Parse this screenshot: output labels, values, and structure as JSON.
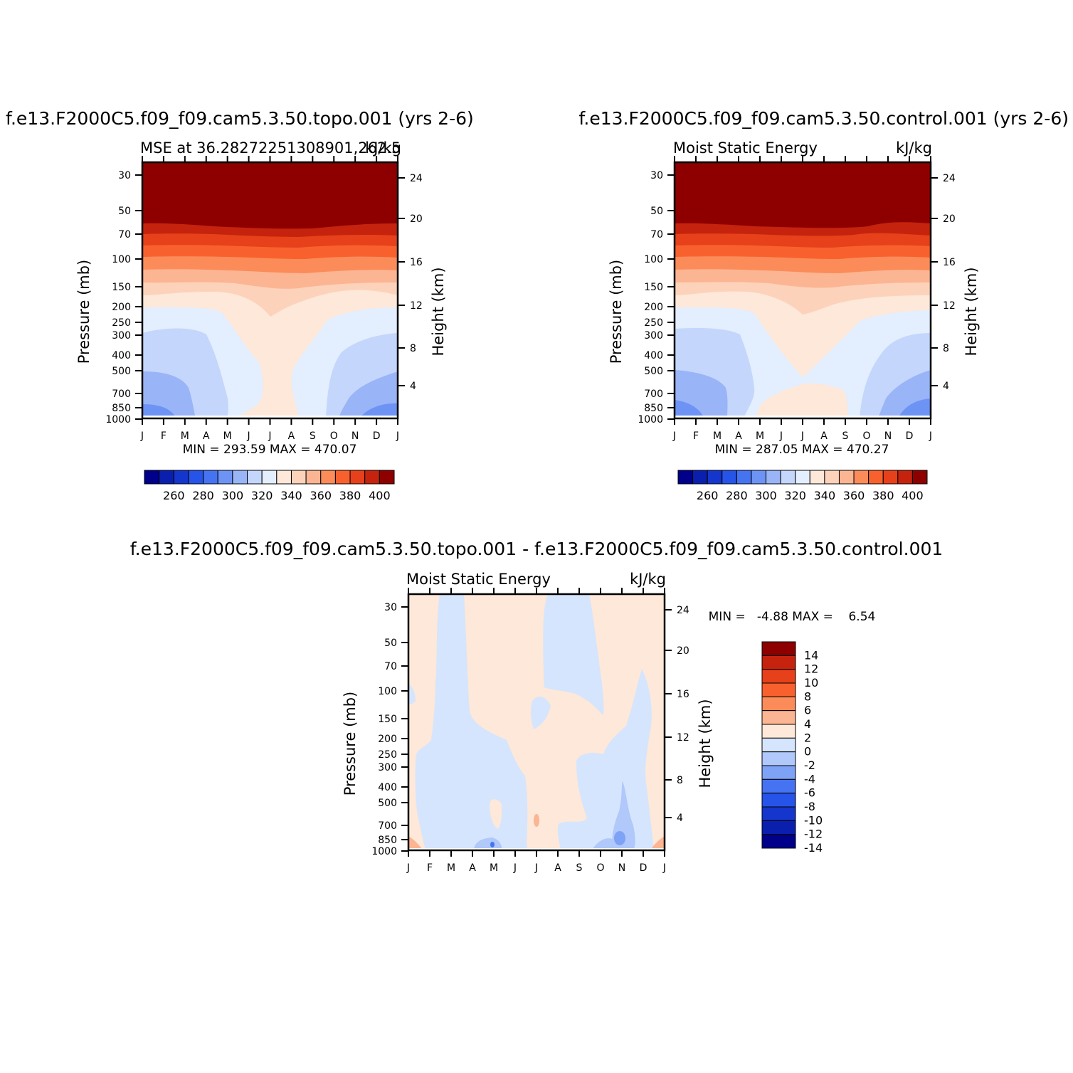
{
  "colors": {
    "abs_scale": [
      "#00008b",
      "#0b1fae",
      "#1536cc",
      "#2653e8",
      "#4573f2",
      "#6d93f5",
      "#99b4f7",
      "#c4d6fb",
      "#e3eefe",
      "#fde8d9",
      "#fdd2bb",
      "#fcb592",
      "#fb8c5a",
      "#f8612d",
      "#e6411a",
      "#c5230d",
      "#8e0000"
    ],
    "diff_scale": [
      "#00008b",
      "#0b1fae",
      "#1536cc",
      "#2653e8",
      "#4573f2",
      "#7ea2f6",
      "#b0c8fa",
      "#d5e5fd",
      "#fde8d9",
      "#fcb592",
      "#fb8c5a",
      "#f8612d",
      "#e6411a",
      "#c5230d",
      "#8e0000"
    ]
  },
  "panels": {
    "topo": {
      "header": "f.e13.F2000C5.f09_f09.cam5.3.50.topo.001  (yrs 2-6)",
      "left_title": "MSE at 36.28272251308901,262.5",
      "units": "kJ/kg",
      "minmax": "MIN = 293.59  MAX = 470.07",
      "colorbar_labels": [
        "260",
        "280",
        "300",
        "320",
        "340",
        "360",
        "380",
        "400"
      ]
    },
    "control": {
      "header": "f.e13.F2000C5.f09_f09.cam5.3.50.control.001  (yrs 2-6)",
      "left_title": "Moist Static Energy",
      "units": "kJ/kg",
      "minmax": "MIN = 287.05  MAX = 470.27",
      "colorbar_labels": [
        "260",
        "280",
        "300",
        "320",
        "340",
        "360",
        "380",
        "400"
      ]
    },
    "diff": {
      "header": "f.e13.F2000C5.f09_f09.cam5.3.50.topo.001 - f.e13.F2000C5.f09_f09.cam5.3.50.control.001",
      "left_title": "Moist Static Energy",
      "units": "kJ/kg",
      "minmax": "MIN =   -4.88 MAX =    6.54",
      "colorbar_labels": [
        "14",
        "12",
        "10",
        "8",
        "6",
        "4",
        "2",
        "0",
        "-2",
        "-4",
        "-6",
        "-8",
        "-10",
        "-12",
        "-14"
      ]
    }
  },
  "chart_data": [
    {
      "type": "heatmap",
      "title": "MSE at 36.28272251308901,262.5",
      "units": "kJ/kg",
      "x_ticks": [
        "J",
        "F",
        "M",
        "A",
        "M",
        "J",
        "J",
        "A",
        "S",
        "O",
        "N",
        "D",
        "J"
      ],
      "y_left_label": "Pressure (mb)",
      "y_left_ticks": [
        30,
        50,
        70,
        100,
        150,
        200,
        250,
        300,
        400,
        500,
        700,
        850,
        1000
      ],
      "y_right_label": "Height (km)",
      "y_right_ticks": [
        24,
        20,
        16,
        12,
        8,
        4
      ],
      "levels": [
        260,
        270,
        280,
        290,
        300,
        310,
        320,
        330,
        340,
        350,
        360,
        370,
        380,
        390,
        400,
        410
      ],
      "min": 293.59,
      "max": 470.07,
      "bands_by_pressure": [
        {
          "p": [
            30,
            65
          ],
          "value": ">410"
        },
        {
          "p": [
            65,
            75
          ],
          "value": "400-410"
        },
        {
          "p": [
            75,
            90
          ],
          "value": "390-400"
        },
        {
          "p": [
            90,
            110
          ],
          "value": "380-390"
        },
        {
          "p": [
            110,
            135
          ],
          "value": "370-380"
        },
        {
          "p": [
            135,
            165
          ],
          "value": "360-370"
        },
        {
          "p": [
            165,
            205
          ],
          "value": "350-360"
        },
        {
          "p": [
            205,
            1000
          ],
          "value": "340-350 (summer)"
        },
        {
          "p": [
            205,
            1000
          ],
          "value": "320-340 (winter, lower values near surface)"
        }
      ]
    },
    {
      "type": "heatmap",
      "title": "Moist Static Energy",
      "units": "kJ/kg",
      "x_ticks": [
        "J",
        "F",
        "M",
        "A",
        "M",
        "J",
        "J",
        "A",
        "S",
        "O",
        "N",
        "D",
        "J"
      ],
      "y_left_label": "Pressure (mb)",
      "y_left_ticks": [
        30,
        50,
        70,
        100,
        150,
        200,
        250,
        300,
        400,
        500,
        700,
        850,
        1000
      ],
      "y_right_label": "Height (km)",
      "y_right_ticks": [
        24,
        20,
        16,
        12,
        8,
        4
      ],
      "levels": [
        260,
        270,
        280,
        290,
        300,
        310,
        320,
        330,
        340,
        350,
        360,
        370,
        380,
        390,
        400,
        410
      ],
      "min": 287.05,
      "max": 470.27
    },
    {
      "type": "heatmap",
      "title": "Moist Static Energy",
      "units": "kJ/kg",
      "x_ticks": [
        "J",
        "F",
        "M",
        "A",
        "M",
        "J",
        "J",
        "A",
        "S",
        "O",
        "N",
        "D",
        "J"
      ],
      "y_left_label": "Pressure (mb)",
      "y_left_ticks": [
        30,
        50,
        70,
        100,
        150,
        200,
        250,
        300,
        400,
        500,
        700,
        850,
        1000
      ],
      "y_right_label": "Height (km)",
      "y_right_ticks": [
        24,
        20,
        16,
        12,
        8,
        4
      ],
      "levels": [
        -14,
        -12,
        -10,
        -8,
        -6,
        -4,
        -2,
        0,
        2,
        4,
        6,
        8,
        10,
        12,
        14
      ],
      "min": -4.88,
      "max": 6.54
    }
  ],
  "axes": {
    "y_left_label": "Pressure (mb)",
    "y_right_label": "Height (km)",
    "x_ticks": [
      "J",
      "F",
      "M",
      "A",
      "M",
      "J",
      "J",
      "A",
      "S",
      "O",
      "N",
      "D",
      "J"
    ],
    "p_ticks": [
      "30",
      "50",
      "70",
      "100",
      "150",
      "200",
      "250",
      "300",
      "400",
      "500",
      "700",
      "850",
      "1000"
    ],
    "z_ticks": [
      "24",
      "20",
      "16",
      "12",
      "8",
      "4"
    ]
  }
}
